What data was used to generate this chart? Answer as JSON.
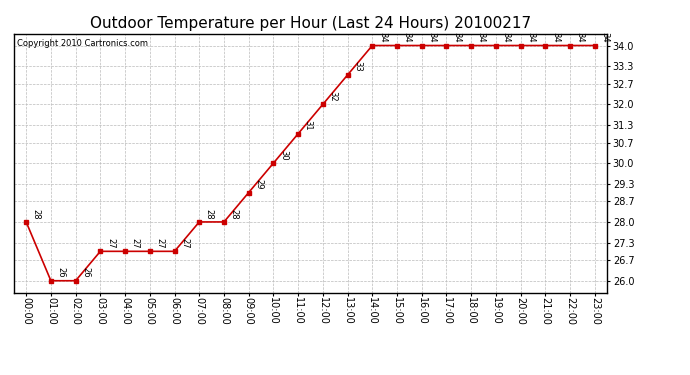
{
  "title": "Outdoor Temperature per Hour (Last 24 Hours) 20100217",
  "copyright_text": "Copyright 2010 Cartronics.com",
  "hours": [
    "00:00",
    "01:00",
    "02:00",
    "03:00",
    "04:00",
    "05:00",
    "06:00",
    "07:00",
    "08:00",
    "09:00",
    "10:00",
    "11:00",
    "12:00",
    "13:00",
    "14:00",
    "15:00",
    "16:00",
    "17:00",
    "18:00",
    "19:00",
    "20:00",
    "21:00",
    "22:00",
    "23:00"
  ],
  "temps": [
    28,
    26,
    26,
    27,
    27,
    27,
    27,
    28,
    28,
    29,
    30,
    31,
    32,
    33,
    34,
    34,
    34,
    34,
    34,
    34,
    34,
    34,
    34,
    34
  ],
  "yticks": [
    26.0,
    26.7,
    27.3,
    28.0,
    28.7,
    29.3,
    30.0,
    30.7,
    31.3,
    32.0,
    32.7,
    33.3,
    34.0
  ],
  "ylim": [
    25.6,
    34.4
  ],
  "line_color": "#cc0000",
  "marker": "s",
  "marker_size": 3,
  "background_color": "#ffffff",
  "grid_color": "#bbbbbb",
  "title_fontsize": 11,
  "label_fontsize": 7,
  "annotation_fontsize": 6,
  "copyright_fontsize": 6
}
